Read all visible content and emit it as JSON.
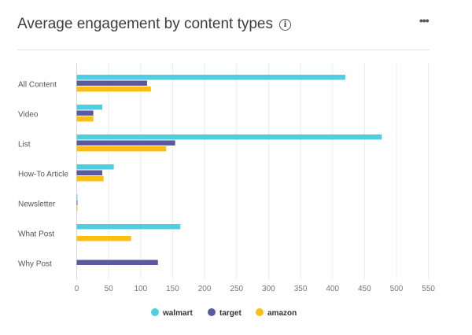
{
  "header": {
    "title": "Average engagement by content types",
    "info_icon": "info-icon",
    "more_icon": "more-icon",
    "more_label": "•••"
  },
  "chart_data": {
    "type": "bar",
    "orientation": "horizontal",
    "title": "Average engagement by content types",
    "categories": [
      "All Content",
      "Video",
      "List",
      "How-To Article",
      "Newsletter",
      "What Post",
      "Why Post"
    ],
    "series": [
      {
        "name": "walmart",
        "color": "#4fcde3",
        "values": [
          420,
          40,
          477,
          58,
          1,
          162,
          0
        ]
      },
      {
        "name": "target",
        "color": "#5c5a9e",
        "values": [
          110,
          26,
          154,
          40,
          1,
          0,
          127
        ]
      },
      {
        "name": "amazon",
        "color": "#fbbf14",
        "values": [
          116,
          26,
          140,
          42,
          1,
          85,
          0
        ]
      }
    ],
    "xlim": [
      0,
      550
    ],
    "xticks": [
      "0",
      "50",
      "100",
      "150",
      "200",
      "250",
      "300",
      "350",
      "400",
      "450",
      "500",
      "550"
    ],
    "grid": true,
    "legend": "bottom"
  }
}
